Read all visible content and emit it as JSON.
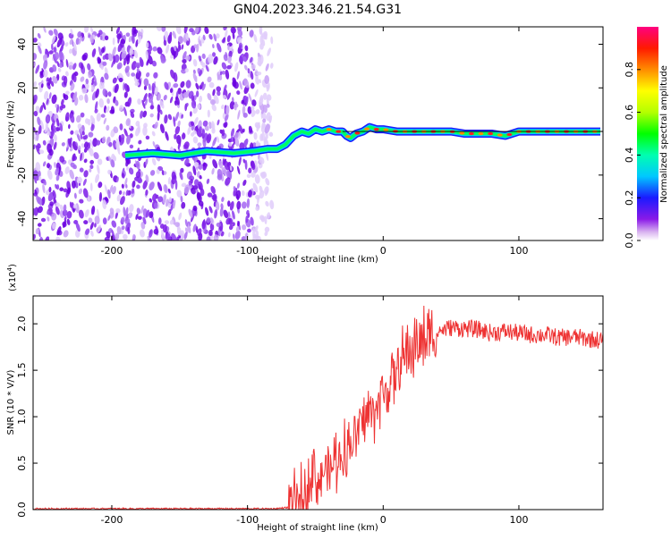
{
  "title": "GN04.2023.346.21.54.G31",
  "chart_data": [
    {
      "type": "heatmap",
      "name": "spectrogram",
      "xlabel": "Height of straight line (km)",
      "ylabel": "Frequency (Hz)",
      "xlim": [
        -258,
        162
      ],
      "ylim": [
        -50,
        48
      ],
      "xticks": [
        -200,
        -100,
        0,
        100
      ],
      "yticks": [
        -40,
        -20,
        0,
        20,
        40
      ],
      "ridge": {
        "x": [
          -190,
          -170,
          -150,
          -130,
          -110,
          -95,
          -85,
          -78,
          -72,
          -66,
          -60,
          -55,
          -50,
          -45,
          -40,
          -35,
          -30,
          -27,
          -24,
          -20,
          -15,
          -10,
          -5,
          0,
          10,
          20,
          30,
          40,
          50,
          60,
          70,
          80,
          90,
          100,
          110,
          120,
          130,
          140,
          150,
          160
        ],
        "y": [
          -11,
          -10,
          -11,
          -9,
          -10,
          -9,
          -8,
          -8,
          -6,
          -2,
          0,
          -1,
          1,
          0,
          1,
          0,
          0,
          -2,
          -3,
          -1,
          0,
          2,
          1,
          1,
          0,
          0,
          0,
          0,
          0,
          -1,
          -1,
          -1,
          -2,
          0,
          0,
          0,
          0,
          0,
          0,
          0
        ]
      },
      "noise_region": [
        -258,
        -90
      ]
    },
    {
      "type": "colorbar",
      "label": "Normalized spectral amplitude",
      "range": [
        0.0,
        1.0
      ],
      "ticks": [
        0.0,
        0.2,
        0.4,
        0.6,
        0.8
      ]
    },
    {
      "type": "line",
      "name": "snr",
      "xlabel": "Height of straight line (km)",
      "ylabel": "SNR (10 * V/V)",
      "multiplier": "(x10",
      "multiplier_exp": "4",
      "multiplier_close": ")",
      "xlim": [
        -258,
        162
      ],
      "ylim": [
        0,
        2.3
      ],
      "xticks": [
        -200,
        -100,
        0,
        100
      ],
      "yticks": [
        0.0,
        0.5,
        1.0,
        1.5,
        2.0
      ],
      "color": "#ee3333",
      "x": [
        -258,
        -200,
        -150,
        -100,
        -80,
        -65,
        -58,
        -55,
        -52,
        -48,
        -44,
        -40,
        -35,
        -30,
        -25,
        -20,
        -15,
        -10,
        -5,
        0,
        5,
        10,
        15,
        20,
        25,
        30,
        35,
        40,
        50,
        60,
        70,
        80,
        90,
        100,
        110,
        120,
        130,
        140,
        150,
        162
      ],
      "y": [
        0.01,
        0.01,
        0.01,
        0.01,
        0.01,
        0.03,
        0.1,
        0.3,
        0.55,
        0.25,
        0.45,
        0.4,
        0.55,
        0.6,
        0.7,
        0.8,
        0.95,
        1.05,
        1.1,
        1.25,
        1.35,
        1.5,
        1.6,
        1.72,
        1.8,
        1.82,
        1.86,
        1.92,
        1.96,
        1.95,
        1.94,
        1.9,
        1.92,
        1.9,
        1.88,
        1.88,
        1.85,
        1.86,
        1.84,
        1.82
      ]
    }
  ],
  "colors": {
    "snr_line": "#ee3333",
    "noise": "#7a1ae0"
  }
}
